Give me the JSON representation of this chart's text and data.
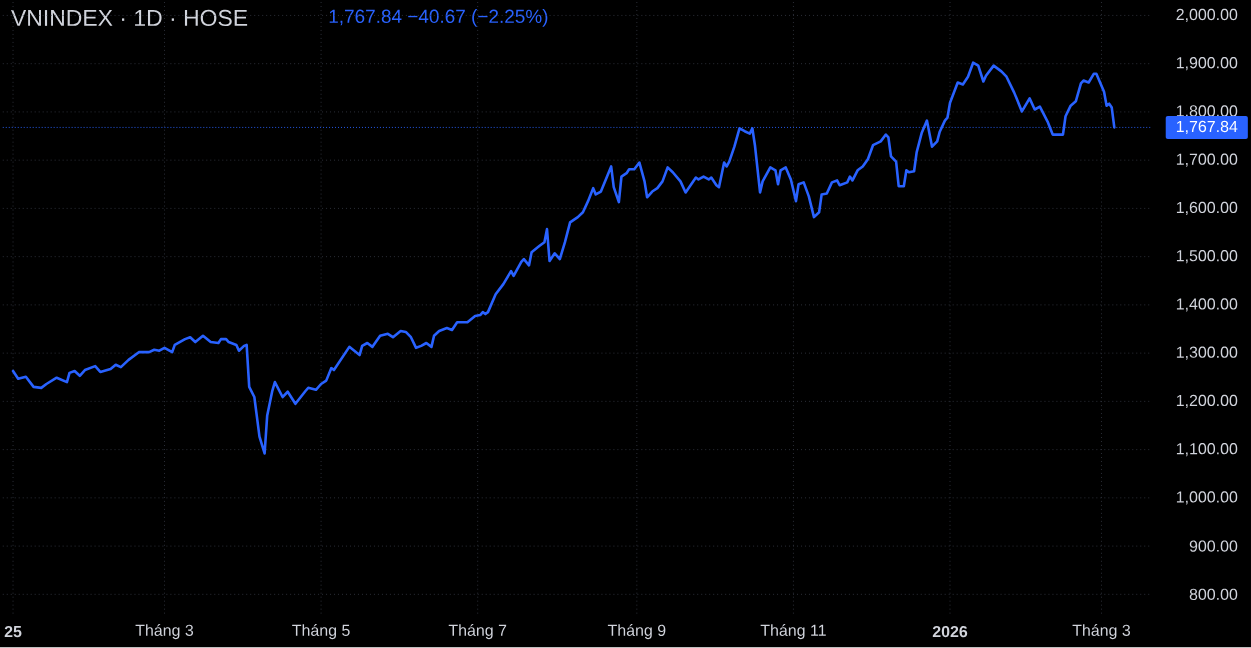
{
  "chart_data": {
    "type": "line",
    "title": "VNINDEX · 1D · HOSE",
    "subtitle": "1,767.84 −40.67 (−2.25%)",
    "x": [
      "2025-01-01",
      "2025-01-03",
      "2025-01-06",
      "2025-01-09",
      "2025-01-12",
      "2025-01-14",
      "2025-01-18",
      "2025-01-22",
      "2025-01-23",
      "2025-01-25",
      "2025-01-27",
      "2025-01-29",
      "2025-02-02",
      "2025-02-04",
      "2025-02-08",
      "2025-02-10",
      "2025-02-12",
      "2025-02-15",
      "2025-02-19",
      "2025-02-23",
      "2025-02-25",
      "2025-02-27",
      "2025-03-01",
      "2025-03-04",
      "2025-03-05",
      "2025-03-09",
      "2025-03-11",
      "2025-03-13",
      "2025-03-16",
      "2025-03-19",
      "2025-03-22",
      "2025-03-23",
      "2025-03-25",
      "2025-03-26",
      "2025-03-29",
      "2025-03-30",
      "2025-04-01",
      "2025-04-02",
      "2025-04-03",
      "2025-04-05",
      "2025-04-07",
      "2025-04-09",
      "2025-04-10",
      "2025-04-12",
      "2025-04-13",
      "2025-04-16",
      "2025-04-18",
      "2025-04-21",
      "2025-04-25",
      "2025-04-26",
      "2025-04-29",
      "2025-05-01",
      "2025-05-03",
      "2025-05-05",
      "2025-05-06",
      "2025-05-12",
      "2025-05-16",
      "2025-05-17",
      "2025-05-19",
      "2025-05-21",
      "2025-05-24",
      "2025-05-27",
      "2025-05-29",
      "2025-06-01",
      "2025-06-03",
      "2025-06-05",
      "2025-06-07",
      "2025-06-09",
      "2025-06-11",
      "2025-06-13",
      "2025-06-14",
      "2025-06-16",
      "2025-06-19",
      "2025-06-21",
      "2025-06-23",
      "2025-06-27",
      "2025-06-30",
      "2025-07-02",
      "2025-07-03",
      "2025-07-04",
      "2025-07-05",
      "2025-07-08",
      "2025-07-11",
      "2025-07-14",
      "2025-07-15",
      "2025-07-18",
      "2025-07-19",
      "2025-07-21",
      "2025-07-22",
      "2025-07-25",
      "2025-07-27",
      "2025-07-28",
      "2025-07-29",
      "2025-07-31",
      "2025-08-02",
      "2025-08-04",
      "2025-08-06",
      "2025-08-09",
      "2025-08-11",
      "2025-08-13",
      "2025-08-15",
      "2025-08-16",
      "2025-08-18",
      "2025-08-22",
      "2025-08-23",
      "2025-08-25",
      "2025-08-26",
      "2025-08-28",
      "2025-08-29",
      "2025-08-31",
      "2025-09-02",
      "2025-09-04",
      "2025-09-05",
      "2025-09-07",
      "2025-09-09",
      "2025-09-11",
      "2025-09-13",
      "2025-09-15",
      "2025-09-18",
      "2025-09-20",
      "2025-09-24",
      "2025-09-25",
      "2025-09-27",
      "2025-09-29",
      "2025-09-30",
      "2025-10-02",
      "2025-10-03",
      "2025-10-05",
      "2025-10-06",
      "2025-10-07",
      "2025-10-09",
      "2025-10-11",
      "2025-10-13",
      "2025-10-15",
      "2025-10-16",
      "2025-10-17",
      "2025-10-19",
      "2025-10-20",
      "2025-10-23",
      "2025-10-25",
      "2025-10-26",
      "2025-10-27",
      "2025-10-29",
      "2025-10-31",
      "2025-11-02",
      "2025-11-03",
      "2025-11-05",
      "2025-11-07",
      "2025-11-09",
      "2025-11-11",
      "2025-11-12",
      "2025-11-14",
      "2025-11-16",
      "2025-11-18",
      "2025-11-19",
      "2025-11-22",
      "2025-11-23",
      "2025-11-24",
      "2025-11-26",
      "2025-11-28",
      "2025-11-30",
      "2025-12-02",
      "2025-12-05",
      "2025-12-07",
      "2025-12-08",
      "2025-12-09",
      "2025-12-11",
      "2025-12-12",
      "2025-12-14",
      "2025-12-15",
      "2025-12-16",
      "2025-12-18",
      "2025-12-19",
      "2025-12-21",
      "2025-12-23",
      "2025-12-25",
      "2025-12-27",
      "2025-12-28",
      "2025-12-30",
      "2025-12-31",
      "2026-01-01",
      "2026-01-04",
      "2026-01-06",
      "2026-01-08",
      "2026-01-10",
      "2026-01-12",
      "2026-01-14",
      "2026-01-15",
      "2026-01-18",
      "2026-01-21",
      "2026-01-23",
      "2026-01-26",
      "2026-01-29",
      "2026-02-01",
      "2026-02-03",
      "2026-02-05",
      "2026-02-08",
      "2026-02-10",
      "2026-02-14",
      "2026-02-15",
      "2026-02-17",
      "2026-02-19",
      "2026-02-21",
      "2026-02-22",
      "2026-02-24",
      "2026-02-26",
      "2026-02-27",
      "2026-03-02",
      "2026-03-03",
      "2026-03-04",
      "2026-03-05",
      "2026-03-06"
    ],
    "series": [
      {
        "color": "#2962ff",
        "values": [
          1263,
          1247,
          1251,
          1230,
          1228,
          1236,
          1249,
          1240,
          1259,
          1263,
          1253,
          1265,
          1273,
          1261,
          1267,
          1276,
          1271,
          1286,
          1302,
          1302,
          1307,
          1305,
          1311,
          1302,
          1317,
          1329,
          1333,
          1323,
          1336,
          1323,
          1321,
          1329,
          1329,
          1323,
          1317,
          1305,
          1315,
          1317,
          1230,
          1209,
          1127,
          1092,
          1170,
          1222,
          1240,
          1209,
          1220,
          1195,
          1222,
          1228,
          1224,
          1236,
          1243,
          1269,
          1265,
          1313,
          1296,
          1315,
          1321,
          1313,
          1336,
          1340,
          1333,
          1346,
          1344,
          1333,
          1311,
          1315,
          1321,
          1313,
          1336,
          1346,
          1352,
          1348,
          1364,
          1364,
          1377,
          1379,
          1385,
          1381,
          1385,
          1422,
          1443,
          1470,
          1460,
          1489,
          1495,
          1482,
          1509,
          1522,
          1530,
          1557,
          1491,
          1507,
          1495,
          1530,
          1571,
          1582,
          1592,
          1615,
          1642,
          1629,
          1635,
          1687,
          1644,
          1613,
          1666,
          1673,
          1681,
          1681,
          1695,
          1656,
          1623,
          1635,
          1642,
          1656,
          1685,
          1675,
          1656,
          1633,
          1664,
          1660,
          1666,
          1660,
          1664,
          1648,
          1644,
          1695,
          1687,
          1697,
          1728,
          1766,
          1760,
          1755,
          1766,
          1731,
          1633,
          1656,
          1685,
          1679,
          1650,
          1679,
          1685,
          1660,
          1615,
          1650,
          1654,
          1625,
          1582,
          1592,
          1629,
          1631,
          1654,
          1658,
          1648,
          1654,
          1666,
          1658,
          1679,
          1687,
          1702,
          1731,
          1739,
          1753,
          1747,
          1708,
          1697,
          1646,
          1646,
          1679,
          1675,
          1677,
          1716,
          1757,
          1782,
          1728,
          1739,
          1759,
          1782,
          1788,
          1819,
          1861,
          1857,
          1873,
          1902,
          1896,
          1863,
          1875,
          1896,
          1884,
          1873,
          1840,
          1801,
          1828,
          1805,
          1811,
          1780,
          1753,
          1753,
          1791,
          1813,
          1822,
          1859,
          1865,
          1861,
          1879,
          1879,
          1842,
          1813,
          1817,
          1809,
          1767.84
        ]
      }
    ],
    "xlim": [
      "2024-12-28",
      "2026-03-20"
    ],
    "xticks": [
      {
        "value": "2025-01-01",
        "label": "25"
      },
      {
        "value": "2025-03-01",
        "label": "Tháng 3"
      },
      {
        "value": "2025-05-01",
        "label": "Tháng 5"
      },
      {
        "value": "2025-07-01",
        "label": "Tháng 7"
      },
      {
        "value": "2025-09-01",
        "label": "Tháng 9"
      },
      {
        "value": "2025-11-01",
        "label": "Tháng 11"
      },
      {
        "value": "2026-01-01",
        "label": "2026"
      },
      {
        "value": "2026-03-01",
        "label": "Tháng 3"
      }
    ],
    "ylim": [
      760,
      2032
    ],
    "yticks": [
      {
        "value": 800,
        "label": "800.00"
      },
      {
        "value": 900,
        "label": "900.00"
      },
      {
        "value": 1000,
        "label": "1,000.00"
      },
      {
        "value": 1100,
        "label": "1,100.00"
      },
      {
        "value": 1200,
        "label": "1,200.00"
      },
      {
        "value": 1300,
        "label": "1,300.00"
      },
      {
        "value": 1400,
        "label": "1,400.00"
      },
      {
        "value": 1500,
        "label": "1,500.00"
      },
      {
        "value": 1600,
        "label": "1,600.00"
      },
      {
        "value": 1700,
        "label": "1,700.00"
      },
      {
        "value": 1800,
        "label": "1,800.00"
      },
      {
        "value": 1900,
        "label": "1,900.00"
      },
      {
        "value": 2000,
        "label": "2,000.00"
      }
    ],
    "grid": true,
    "ref_lines": [
      {
        "axis": "y",
        "value": 1767.84,
        "label": "1,767.84",
        "color": "#2962ff",
        "line_style": "dotted"
      }
    ]
  }
}
